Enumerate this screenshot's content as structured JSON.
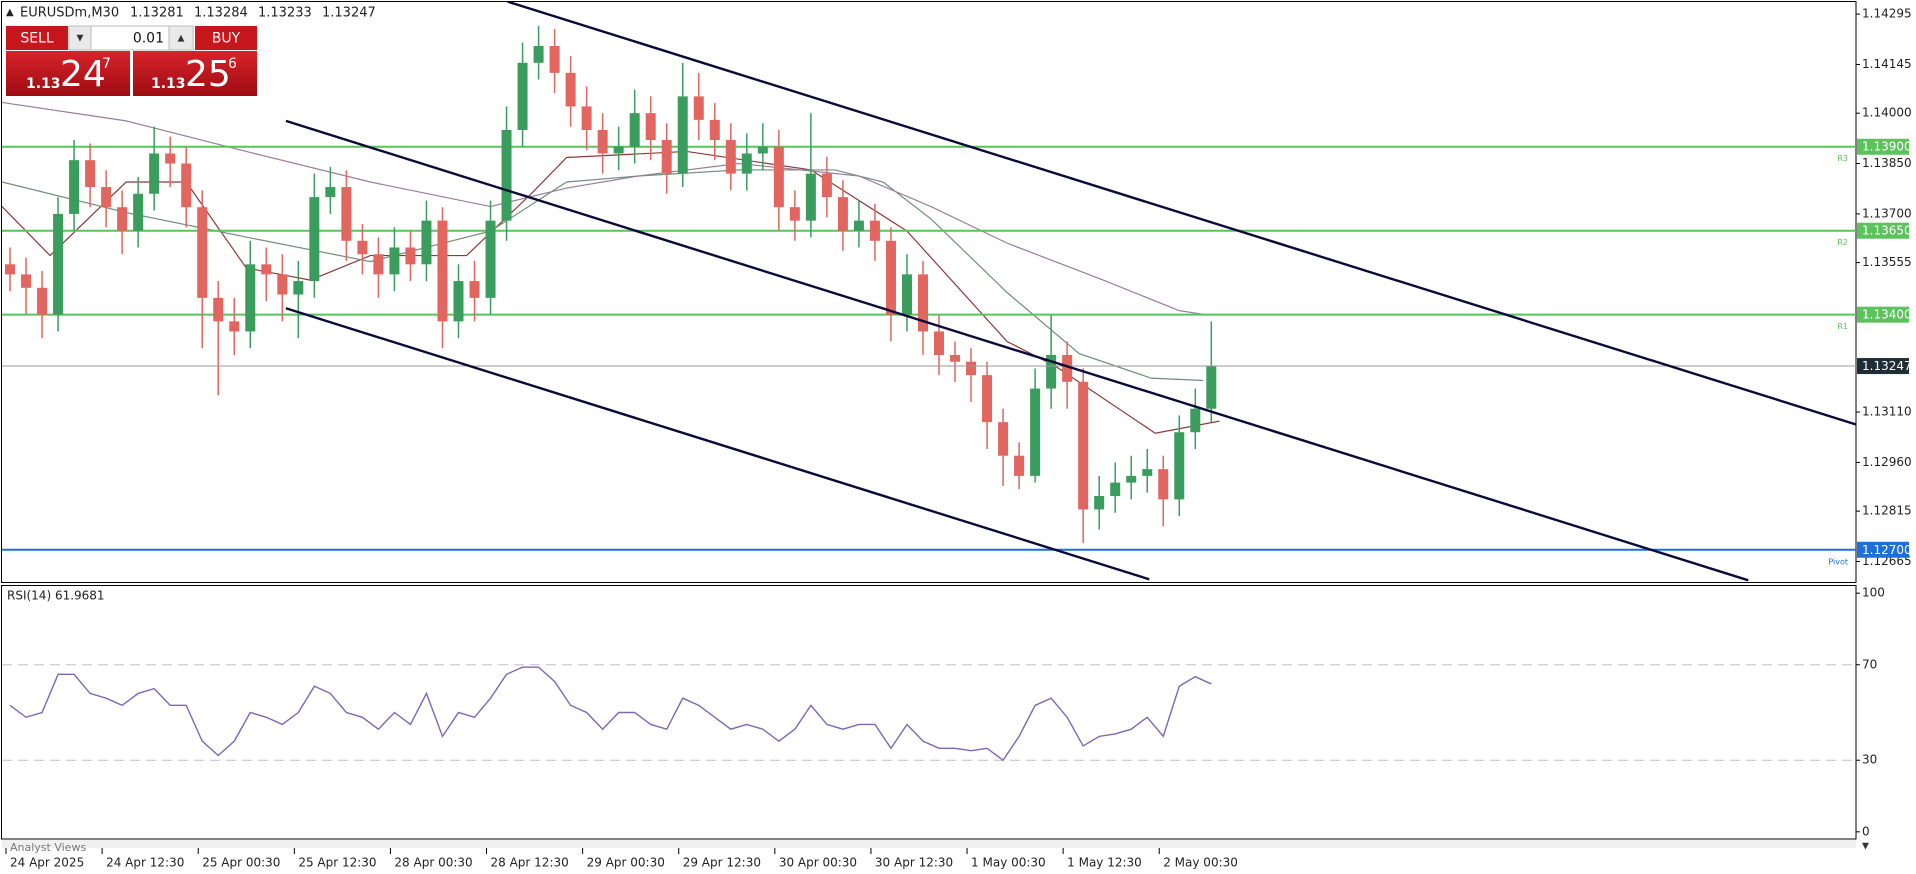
{
  "header": {
    "symbol": "EURUSDm,M30",
    "quote": [
      "1.13281",
      "1.13284",
      "1.13233",
      "1.13247"
    ]
  },
  "trade_panel": {
    "sell": "SELL",
    "buy": "BUY",
    "volume": "0.01",
    "sell_price": {
      "big_figure": "1.13",
      "pips": "24",
      "point": "7"
    },
    "buy_price": {
      "big_figure": "1.13",
      "pips": "25",
      "point": "6"
    }
  },
  "footer": {
    "tab": "Analyst Views"
  },
  "chart_data": [
    {
      "type": "candlestick",
      "up_color": "#3a9d5d",
      "down_color": "#e0665f",
      "xlim": [
        0,
        463
      ],
      "ylim": [
        1.12604,
        1.14331
      ],
      "yticks": [
        {
          "value": 1.14295,
          "label": "1.14295"
        },
        {
          "value": 1.14145,
          "label": "1.14145"
        },
        {
          "value": 1.14,
          "label": "1.14000"
        },
        {
          "value": 1.1385,
          "label": "1.13850"
        },
        {
          "value": 1.137,
          "label": "1.13700"
        },
        {
          "value": 1.13555,
          "label": "1.13555"
        },
        {
          "value": 1.1311,
          "label": "1.13110"
        },
        {
          "value": 1.1296,
          "label": "1.12960"
        },
        {
          "value": 1.12815,
          "label": "1.12815"
        },
        {
          "value": 1.12665,
          "label": "1.12665"
        }
      ],
      "x": [
        2,
        6,
        10,
        14,
        18,
        22,
        26,
        30,
        34,
        38,
        42,
        46,
        50,
        54,
        58,
        62,
        66,
        70,
        74,
        78,
        82,
        86,
        90,
        94,
        98,
        102,
        106,
        110,
        114,
        118,
        122,
        126,
        130,
        134,
        138,
        142,
        146,
        150,
        154,
        158,
        162,
        166,
        170,
        174,
        178,
        182,
        186,
        190,
        194,
        198,
        202,
        206,
        210,
        214,
        218,
        222,
        226,
        230,
        234,
        238,
        242,
        246,
        250,
        254,
        258,
        262,
        266,
        270,
        274,
        278,
        282,
        286,
        290,
        294,
        298,
        302
      ],
      "open": [
        1.1355,
        1.1352,
        1.1348,
        1.134,
        1.137,
        1.1386,
        1.1378,
        1.1372,
        1.1365,
        1.1376,
        1.1388,
        1.1385,
        1.1372,
        1.1345,
        1.1338,
        1.1335,
        1.1355,
        1.1352,
        1.1346,
        1.135,
        1.1375,
        1.1378,
        1.1362,
        1.1358,
        1.1352,
        1.136,
        1.1355,
        1.1368,
        1.1338,
        1.135,
        1.1345,
        1.1368,
        1.1395,
        1.1415,
        1.142,
        1.1412,
        1.1402,
        1.1395,
        1.1388,
        1.139,
        1.14,
        1.1392,
        1.1382,
        1.1405,
        1.1398,
        1.1392,
        1.1382,
        1.1388,
        1.139,
        1.1372,
        1.1368,
        1.1382,
        1.1375,
        1.1365,
        1.1368,
        1.1362,
        1.134,
        1.1352,
        1.1335,
        1.1328,
        1.1326,
        1.1322,
        1.1308,
        1.1298,
        1.1292,
        1.1318,
        1.1328,
        1.132,
        1.1282,
        1.1286,
        1.129,
        1.1292,
        1.1294,
        1.1285,
        1.1305,
        1.1312
      ],
      "high": [
        1.136,
        1.1357,
        1.1353,
        1.1375,
        1.1392,
        1.1391,
        1.1383,
        1.1377,
        1.1381,
        1.1396,
        1.1393,
        1.139,
        1.1377,
        1.135,
        1.1345,
        1.1362,
        1.136,
        1.1358,
        1.1356,
        1.1382,
        1.1384,
        1.1383,
        1.1367,
        1.1363,
        1.1366,
        1.1365,
        1.1374,
        1.1372,
        1.1355,
        1.1356,
        1.1374,
        1.1402,
        1.1421,
        1.1426,
        1.1425,
        1.1417,
        1.1408,
        1.14,
        1.1396,
        1.1407,
        1.1405,
        1.1397,
        1.1415,
        1.1412,
        1.1403,
        1.1397,
        1.1394,
        1.1397,
        1.1395,
        1.1377,
        1.14,
        1.1387,
        1.138,
        1.1374,
        1.1373,
        1.1366,
        1.1358,
        1.1356,
        1.134,
        1.1332,
        1.133,
        1.1326,
        1.1312,
        1.1302,
        1.1324,
        1.134,
        1.1332,
        1.1324,
        1.1292,
        1.1296,
        1.1298,
        1.13,
        1.1298,
        1.131,
        1.1318,
        1.1338
      ],
      "low": [
        1.1347,
        1.134,
        1.1333,
        1.1335,
        1.1365,
        1.1372,
        1.1366,
        1.1358,
        1.136,
        1.1371,
        1.1378,
        1.1366,
        1.133,
        1.1316,
        1.1328,
        1.133,
        1.1344,
        1.1338,
        1.1333,
        1.1345,
        1.137,
        1.1356,
        1.1352,
        1.1345,
        1.1347,
        1.135,
        1.135,
        1.133,
        1.1333,
        1.1338,
        1.134,
        1.1362,
        1.139,
        1.141,
        1.1406,
        1.1396,
        1.1389,
        1.1382,
        1.1383,
        1.1385,
        1.1386,
        1.1376,
        1.1378,
        1.1392,
        1.1386,
        1.1377,
        1.1377,
        1.1383,
        1.1365,
        1.1362,
        1.1363,
        1.1369,
        1.1359,
        1.136,
        1.1356,
        1.1332,
        1.1335,
        1.1328,
        1.1322,
        1.132,
        1.1314,
        1.13,
        1.1289,
        1.1288,
        1.129,
        1.1312,
        1.1312,
        1.1272,
        1.1276,
        1.1281,
        1.1285,
        1.1287,
        1.1277,
        1.128,
        1.13,
        1.1308
      ],
      "close": [
        1.1352,
        1.1348,
        1.134,
        1.137,
        1.1386,
        1.1378,
        1.1372,
        1.1365,
        1.1376,
        1.1388,
        1.1385,
        1.1372,
        1.1345,
        1.1338,
        1.1335,
        1.1355,
        1.1352,
        1.1346,
        1.135,
        1.1375,
        1.1378,
        1.1362,
        1.1358,
        1.1352,
        1.136,
        1.1355,
        1.1368,
        1.1338,
        1.135,
        1.1345,
        1.1368,
        1.1395,
        1.1415,
        1.142,
        1.1412,
        1.1402,
        1.1395,
        1.1388,
        1.139,
        1.14,
        1.1392,
        1.1382,
        1.1405,
        1.1398,
        1.1392,
        1.1382,
        1.1388,
        1.139,
        1.1372,
        1.1368,
        1.1382,
        1.1375,
        1.1365,
        1.1368,
        1.1362,
        1.134,
        1.1352,
        1.1335,
        1.1328,
        1.1326,
        1.1322,
        1.1308,
        1.1298,
        1.1292,
        1.1318,
        1.1328,
        1.132,
        1.1282,
        1.1286,
        1.129,
        1.1292,
        1.1294,
        1.1285,
        1.1305,
        1.1312,
        1.13247
      ],
      "moving_averages": [
        {
          "color": "#8b3a3a",
          "x": [
            0,
            12,
            31,
            46,
            61,
            77,
            92,
            116,
            132,
            141,
            171,
            202,
            226,
            251,
            263,
            288,
            304
          ],
          "values": [
            1.13722,
            1.13576,
            1.13795,
            1.13795,
            1.13539,
            1.13503,
            1.13576,
            1.13576,
            1.13758,
            1.13868,
            1.13886,
            1.13831,
            1.13649,
            1.1332,
            1.13247,
            1.13047,
            1.13083
          ]
        },
        {
          "color": "#6f8f7a",
          "x": [
            0,
            31,
            61,
            92,
            122,
            141,
            159,
            184,
            208,
            220,
            232,
            251,
            269,
            287,
            300
          ],
          "values": [
            1.13795,
            1.13704,
            1.13631,
            1.13558,
            1.13649,
            1.13795,
            1.13813,
            1.13831,
            1.13831,
            1.13795,
            1.13685,
            1.13466,
            1.13284,
            1.13211,
            1.13204
          ]
        },
        {
          "color": "#9a7d9a",
          "x": [
            0,
            31,
            61,
            92,
            122,
            141,
            159,
            184,
            214,
            232,
            251,
            275,
            294,
            300
          ],
          "values": [
            1.14032,
            1.13977,
            1.13886,
            1.13795,
            1.13722,
            1.13777,
            1.13813,
            1.1385,
            1.13813,
            1.13722,
            1.13613,
            1.13503,
            1.13412,
            1.13401
          ]
        }
      ],
      "trendlines": [
        {
          "color": "#0b0b3b",
          "x": [
            126.3,
            463.3
          ],
          "y": [
            1.14332,
            1.13072
          ]
        },
        {
          "color": "#0b0b3b",
          "x": [
            70.9,
            436.1
          ],
          "y": [
            1.13977,
            1.12609
          ]
        },
        {
          "color": "#0b0b3b",
          "x": [
            70.9,
            286.5
          ],
          "y": [
            1.13419,
            1.12612
          ]
        }
      ],
      "levels": [
        {
          "name": "R3",
          "value": 1.139,
          "label": "1.13900",
          "color": "#5cc25c"
        },
        {
          "name": "R2",
          "value": 1.1365,
          "label": "1.13650",
          "color": "#5cc25c"
        },
        {
          "name": "R1",
          "value": 1.134,
          "label": "1.13400",
          "color": "#5cc25c"
        },
        {
          "name": "Pivot",
          "value": 1.127,
          "label": "1.12700",
          "color": "#1e6fd9"
        }
      ],
      "last_price": {
        "value": 1.13247,
        "label": "1.13247",
        "color": "#9a9a9a"
      }
    },
    {
      "type": "line",
      "title": "RSI(14) 61.9681",
      "color": "#7a68b8",
      "xlim": [
        0,
        463
      ],
      "ylim": [
        -3,
        103
      ],
      "yticks": [
        0,
        30,
        70,
        100
      ],
      "levels": [
        30,
        70
      ],
      "xticks": [
        {
          "value": 1,
          "label": "24 Apr 2025"
        },
        {
          "value": 25,
          "label": "24 Apr 12:30"
        },
        {
          "value": 49,
          "label": "25 Apr 00:30"
        },
        {
          "value": 73,
          "label": "25 Apr 12:30"
        },
        {
          "value": 97,
          "label": "28 Apr 00:30"
        },
        {
          "value": 121,
          "label": "28 Apr 12:30"
        },
        {
          "value": 145,
          "label": "29 Apr 00:30"
        },
        {
          "value": 169,
          "label": "29 Apr 12:30"
        },
        {
          "value": 193,
          "label": "30 Apr 00:30"
        },
        {
          "value": 217,
          "label": "30 Apr 12:30"
        },
        {
          "value": 241,
          "label": "1 May 00:30"
        },
        {
          "value": 265,
          "label": "1 May 12:30"
        },
        {
          "value": 289,
          "label": "2 May 00:30"
        }
      ],
      "x": [
        2,
        6,
        10,
        14,
        18,
        22,
        26,
        30,
        34,
        38,
        42,
        46,
        50,
        54,
        58,
        62,
        66,
        70,
        74,
        78,
        82,
        86,
        90,
        94,
        98,
        102,
        106,
        110,
        114,
        118,
        122,
        126,
        130,
        134,
        138,
        142,
        146,
        150,
        154,
        158,
        162,
        166,
        170,
        174,
        178,
        182,
        186,
        190,
        194,
        198,
        202,
        206,
        210,
        214,
        218,
        222,
        226,
        230,
        234,
        238,
        242,
        246,
        250,
        254,
        258,
        262,
        266,
        270,
        274,
        278,
        282,
        286,
        290,
        294,
        298,
        302
      ],
      "values": [
        53,
        48,
        50,
        66,
        66,
        58,
        56,
        53,
        58,
        60,
        53,
        53,
        38,
        32,
        38,
        50,
        48,
        45,
        50,
        61,
        58,
        50,
        48,
        43,
        50,
        45,
        58,
        40,
        50,
        48,
        56,
        66,
        69,
        69,
        63,
        53,
        50,
        43,
        50,
        50,
        45,
        43,
        56,
        53,
        48,
        43,
        45,
        43,
        38,
        43,
        53,
        45,
        43,
        45,
        45,
        35,
        45,
        38,
        35,
        35,
        34,
        35,
        30,
        40,
        53,
        56,
        48,
        36,
        40,
        41,
        43,
        48,
        40,
        61,
        65,
        61.9681
      ]
    }
  ]
}
